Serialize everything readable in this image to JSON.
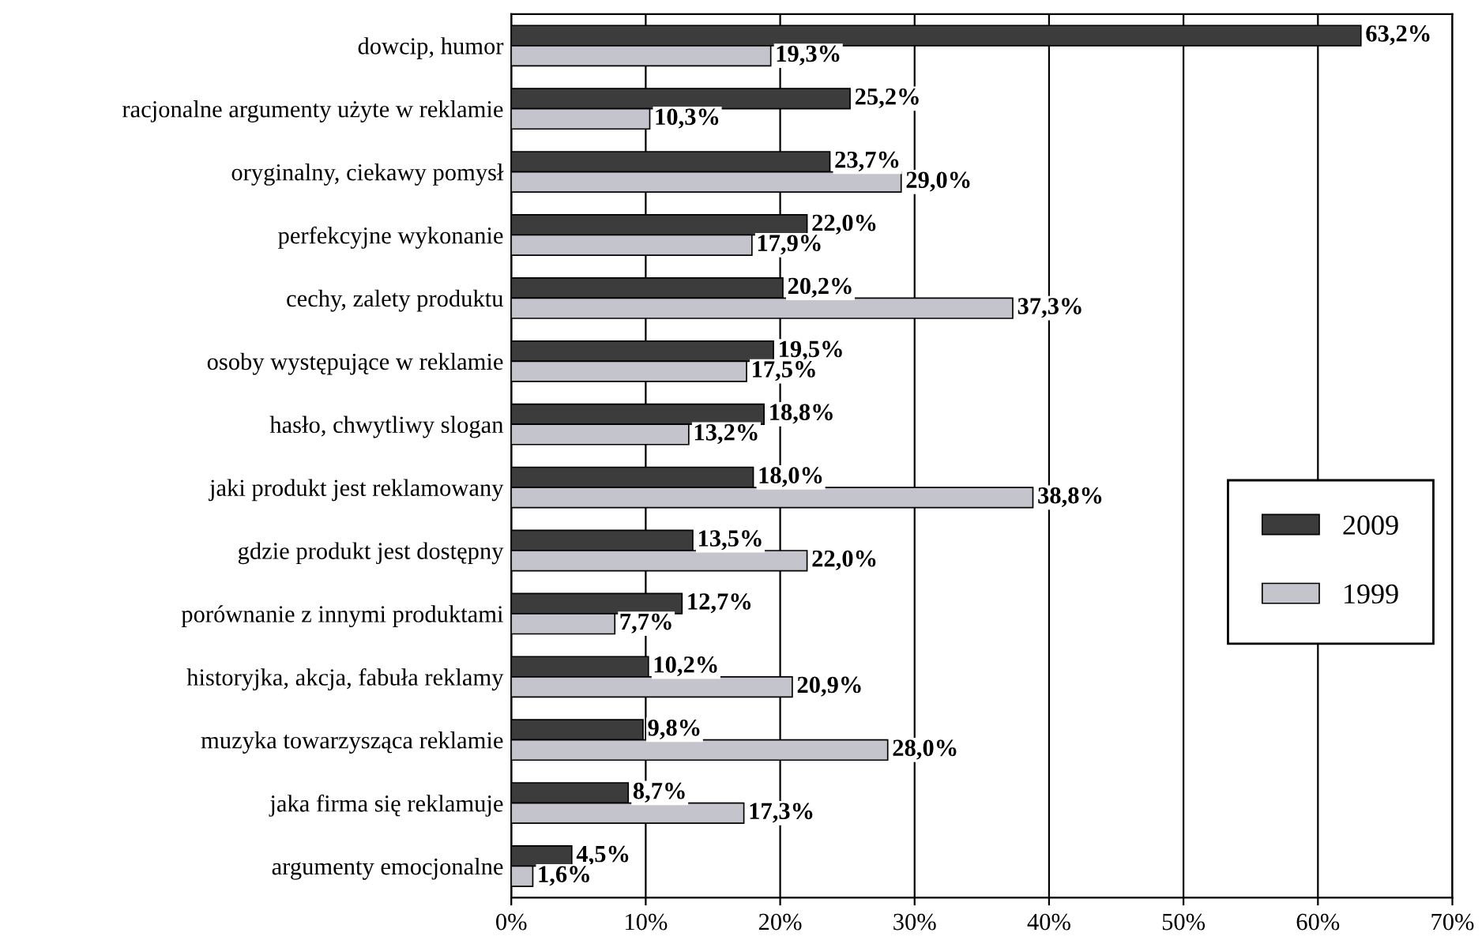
{
  "chart_data": {
    "type": "bar",
    "orientation": "horizontal",
    "categories": [
      "dowcip, humor",
      "racjonalne argumenty użyte w reklamie",
      "oryginalny, ciekawy pomysł",
      "perfekcyjne wykonanie",
      "cechy, zalety produktu",
      "osoby występujące w reklamie",
      "hasło, chwytliwy slogan",
      "jaki produkt jest reklamowany",
      "gdzie produkt jest dostępny",
      "porównanie z innymi produktami",
      "historyjka, akcja, fabuła reklamy",
      "muzyka towarzysząca reklamie",
      "jaka firma się reklamuje",
      "argumenty emocjonalne"
    ],
    "series": [
      {
        "name": "2009",
        "color": "#3c3c3c",
        "values": [
          63.2,
          25.2,
          23.7,
          22.0,
          20.2,
          19.5,
          18.8,
          18.0,
          13.5,
          12.7,
          10.2,
          9.8,
          8.7,
          4.5
        ],
        "value_labels": [
          "63,2%",
          "25,2%",
          "23,7%",
          "22,0%",
          "20,2%",
          "19,5%",
          "18,8%",
          "18,0%",
          "13,5%",
          "12,7%",
          "10,2%",
          "9,8%",
          "8,7%",
          "4,5%"
        ]
      },
      {
        "name": "1999",
        "color": "#c4c4cc",
        "values": [
          19.3,
          10.3,
          29.0,
          17.9,
          37.3,
          17.5,
          13.2,
          38.8,
          22.0,
          7.7,
          20.9,
          28.0,
          17.3,
          1.6
        ],
        "value_labels": [
          "19,3%",
          "10,3%",
          "29,0%",
          "17,9%",
          "37,3%",
          "17,5%",
          "13,2%",
          "38,8%",
          "22,0%",
          "7,7%",
          "20,9%",
          "28,0%",
          "17,3%",
          "1,6%"
        ]
      }
    ],
    "xlim": [
      0,
      70
    ],
    "xticks": [
      {
        "value": 0,
        "label": "0%"
      },
      {
        "value": 10,
        "label": "10%"
      },
      {
        "value": 20,
        "label": "20%"
      },
      {
        "value": 30,
        "label": "30%"
      },
      {
        "value": 40,
        "label": "40%"
      },
      {
        "value": 50,
        "label": "50%"
      },
      {
        "value": 60,
        "label": "60%"
      },
      {
        "value": 70,
        "label": "70%"
      }
    ],
    "grid": "x",
    "legend": "right"
  }
}
